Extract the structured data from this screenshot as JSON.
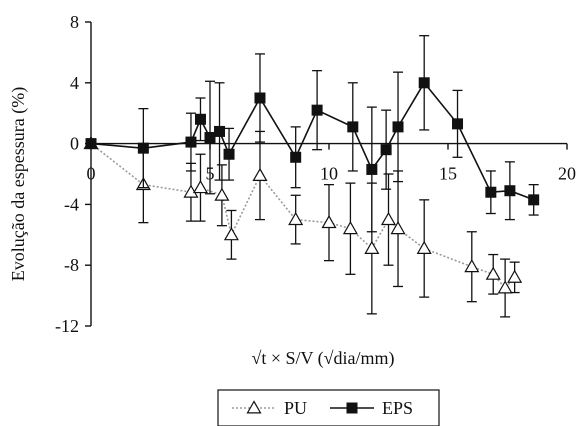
{
  "chart_data": {
    "type": "line",
    "xlabel": "√t × S/V (√dia/mm)",
    "ylabel": "Evolução da espessura (%)",
    "xlim": [
      0,
      20
    ],
    "ylim": [
      -12,
      8
    ],
    "x_ticks": [
      0,
      5,
      10,
      15,
      20
    ],
    "y_ticks": [
      8,
      4,
      0,
      -4,
      -8,
      -12
    ],
    "x_tick_labels": [
      "0",
      "5",
      "10",
      "15",
      "20"
    ],
    "y_tick_labels": [
      "8",
      "4",
      "0",
      "-4",
      "-8",
      "-12"
    ],
    "grid": false,
    "legend_position": "bottom-center",
    "series": [
      {
        "name": "PU",
        "marker": "open-triangle",
        "line_style": "dotted",
        "color": "#9a9a9a",
        "marker_color": "#111111",
        "points": [
          {
            "x": 0.0,
            "y": 0.0,
            "err": 0.0
          },
          {
            "x": 2.2,
            "y": -2.7,
            "err": 2.5
          },
          {
            "x": 4.2,
            "y": -3.2,
            "err": 1.9
          },
          {
            "x": 4.6,
            "y": -2.9,
            "err": 2.2
          },
          {
            "x": 5.5,
            "y": -3.4,
            "err": 2.0
          },
          {
            "x": 5.9,
            "y": -6.0,
            "err": 1.6
          },
          {
            "x": 7.1,
            "y": -2.1,
            "err": 2.9
          },
          {
            "x": 8.6,
            "y": -5.0,
            "err": 1.6
          },
          {
            "x": 10.0,
            "y": -5.2,
            "err": 2.5
          },
          {
            "x": 10.9,
            "y": -5.6,
            "err": 3.0
          },
          {
            "x": 11.8,
            "y": -6.9,
            "err": 4.3
          },
          {
            "x": 12.5,
            "y": -5.0,
            "err": 3.0
          },
          {
            "x": 12.9,
            "y": -5.6,
            "err": 3.8
          },
          {
            "x": 14.0,
            "y": -6.9,
            "err": 3.2
          },
          {
            "x": 16.0,
            "y": -8.1,
            "err": 2.3
          },
          {
            "x": 16.9,
            "y": -8.6,
            "err": 1.3
          },
          {
            "x": 17.4,
            "y": -9.5,
            "err": 1.9
          },
          {
            "x": 17.8,
            "y": -8.8,
            "err": 1.0
          }
        ]
      },
      {
        "name": "EPS",
        "marker": "filled-square",
        "line_style": "solid",
        "color": "#111111",
        "marker_color": "#111111",
        "points": [
          {
            "x": 0.0,
            "y": 0.0,
            "err": 0.0
          },
          {
            "x": 2.2,
            "y": -0.3,
            "err": 2.6
          },
          {
            "x": 4.2,
            "y": 0.1,
            "err": 1.9
          },
          {
            "x": 4.6,
            "y": 1.6,
            "err": 1.4
          },
          {
            "x": 5.0,
            "y": 0.4,
            "err": 3.7
          },
          {
            "x": 5.4,
            "y": 0.8,
            "err": 3.2
          },
          {
            "x": 5.8,
            "y": -0.7,
            "err": 1.7
          },
          {
            "x": 7.1,
            "y": 3.0,
            "err": 2.9
          },
          {
            "x": 8.6,
            "y": -0.9,
            "err": 2.0
          },
          {
            "x": 9.5,
            "y": 2.2,
            "err": 2.6
          },
          {
            "x": 11.0,
            "y": 1.1,
            "err": 2.9
          },
          {
            "x": 11.8,
            "y": -1.7,
            "err": 4.1
          },
          {
            "x": 12.4,
            "y": -0.4,
            "err": 2.6
          },
          {
            "x": 12.9,
            "y": 1.1,
            "err": 3.6
          },
          {
            "x": 14.0,
            "y": 4.0,
            "err": 3.1
          },
          {
            "x": 15.4,
            "y": 1.3,
            "err": 2.2
          },
          {
            "x": 16.8,
            "y": -3.2,
            "err": 1.4
          },
          {
            "x": 17.6,
            "y": -3.1,
            "err": 1.9
          },
          {
            "x": 18.6,
            "y": -3.7,
            "err": 1.0
          }
        ]
      }
    ]
  }
}
